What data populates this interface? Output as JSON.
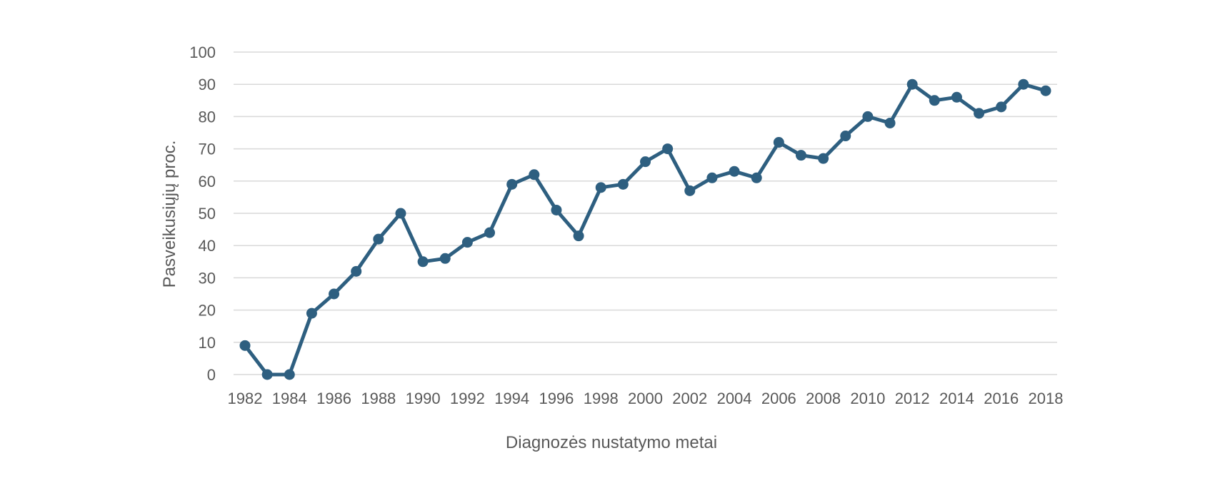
{
  "chart_data": {
    "type": "line",
    "title": "",
    "xlabel": "Diagnozės nustatymo metai",
    "ylabel": "Pasveikusiųjų proc.",
    "xlim": [
      1982,
      2018
    ],
    "ylim": [
      0,
      100
    ],
    "y_ticks": [
      0,
      10,
      20,
      30,
      40,
      50,
      60,
      70,
      80,
      90,
      100
    ],
    "x_ticks": [
      1982,
      1984,
      1986,
      1988,
      1990,
      1992,
      1994,
      1996,
      1998,
      2000,
      2002,
      2004,
      2006,
      2008,
      2010,
      2012,
      2014,
      2016,
      2018
    ],
    "grid": true,
    "legend": "none",
    "series": [
      {
        "color": "#2e5f80",
        "marker": "circle",
        "x": [
          1982,
          1983,
          1984,
          1985,
          1986,
          1987,
          1988,
          1989,
          1990,
          1991,
          1992,
          1993,
          1994,
          1995,
          1996,
          1997,
          1998,
          1999,
          2000,
          2001,
          2002,
          2003,
          2004,
          2005,
          2006,
          2007,
          2008,
          2009,
          2010,
          2011,
          2012,
          2013,
          2014,
          2015,
          2016,
          2017,
          2018
        ],
        "values": [
          9,
          0,
          0,
          19,
          25,
          32,
          42,
          50,
          35,
          36,
          41,
          44,
          59,
          62,
          51,
          43,
          58,
          59,
          66,
          70,
          57,
          61,
          63,
          61,
          72,
          68,
          67,
          74,
          80,
          78,
          90,
          85,
          86,
          81,
          83,
          90,
          88
        ]
      }
    ]
  }
}
